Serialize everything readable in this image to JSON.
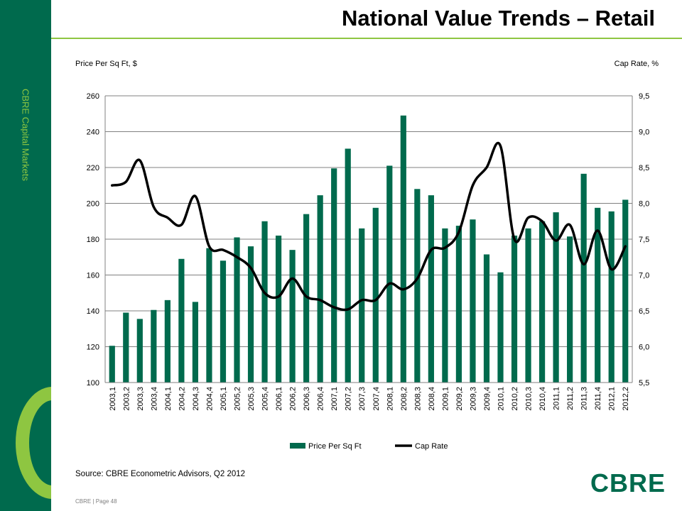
{
  "header": {
    "title": "National Value Trends – Retail"
  },
  "sidebar": {
    "label": "CBRE Capital Markets"
  },
  "footer": {
    "source": "Source: CBRE Econometric Advisors, Q2 2012",
    "page": "CBRE | Page 48"
  },
  "logo": {
    "text": "CBRE"
  },
  "colors": {
    "brand": "#006a4d",
    "accent": "#8ec641",
    "bar": "#006a4d",
    "line": "#000000"
  },
  "chart_data": {
    "type": "bar",
    "ylabel": "Price Per Sq Ft, $",
    "y2label": "Cap Rate, %",
    "ylim": [
      100,
      260
    ],
    "y2lim": [
      5.5,
      9.5
    ],
    "yticks": [
      "100",
      "120",
      "140",
      "160",
      "180",
      "200",
      "220",
      "240",
      "260"
    ],
    "y2ticks": [
      "5,5",
      "6,0",
      "6,5",
      "7,0",
      "7,5",
      "8,0",
      "8,5",
      "9,0",
      "9,5"
    ],
    "grid": true,
    "legend": "bottom",
    "categories": [
      "2003,1",
      "2003,2",
      "2003,3",
      "2003,4",
      "2004,1",
      "2004,2",
      "2004,3",
      "2004,4",
      "2005,1",
      "2005,2",
      "2005,3",
      "2005,4",
      "2006,1",
      "2006,2",
      "2006,3",
      "2006,4",
      "2007,1",
      "2007,2",
      "2007,3",
      "2007,4",
      "2008,1",
      "2008,2",
      "2008,3",
      "2008,4",
      "2009,1",
      "2009,2",
      "2009,3",
      "2009,4",
      "2010,1",
      "2010,2",
      "2010,3",
      "2010,4",
      "2011,1",
      "2011,2",
      "2011,3",
      "2011,4",
      "2012,1",
      "2012,2"
    ],
    "series": [
      {
        "name": "Price Per Sq Ft",
        "type": "bar",
        "axis": "left",
        "values": [
          120.5,
          139,
          135.5,
          140.5,
          146,
          169,
          145,
          175,
          168,
          181,
          176,
          190,
          182,
          174,
          194,
          204.5,
          219.5,
          230.5,
          186,
          197.5,
          221,
          249,
          208,
          204.5,
          186,
          187.5,
          191,
          171.5,
          161.5,
          182,
          186,
          190,
          195,
          181.5,
          216.5,
          197.5,
          195.5,
          202
        ]
      },
      {
        "name": "Cap Rate",
        "type": "line",
        "axis": "right",
        "values": [
          8.25,
          8.3,
          8.6,
          7.95,
          7.8,
          7.7,
          8.1,
          7.4,
          7.35,
          7.25,
          7.1,
          6.75,
          6.7,
          6.95,
          6.7,
          6.65,
          6.55,
          6.52,
          6.65,
          6.65,
          6.88,
          6.8,
          6.95,
          7.35,
          7.38,
          7.6,
          8.25,
          8.5,
          8.8,
          7.5,
          7.8,
          7.75,
          7.48,
          7.7,
          7.15,
          7.62,
          7.08,
          7.4
        ]
      }
    ]
  }
}
